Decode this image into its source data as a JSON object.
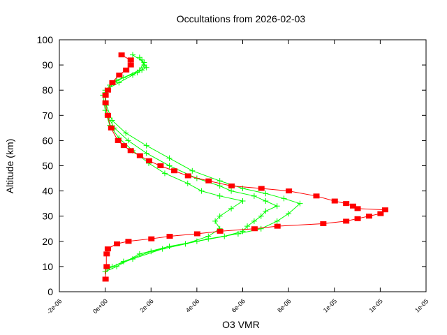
{
  "chart_data": {
    "type": "line",
    "title": "Occultations from 2026-02-03",
    "xlabel": "O3 VMR",
    "ylabel": "Altitude (km)",
    "xlim": [
      -2e-06,
      1.4e-05
    ],
    "ylim": [
      0,
      100
    ],
    "grid": false,
    "x_ticks": [
      -2e-06,
      0,
      2e-06,
      4e-06,
      6e-06,
      8e-06,
      1e-05,
      1.2e-05,
      1.4e-05
    ],
    "x_tick_labels": [
      "-2e-06",
      "0e+00",
      "2e-06",
      "4e-06",
      "6e-06",
      "8e-06",
      "1e-05",
      "1e-05",
      "1e-05"
    ],
    "y_ticks": [
      0,
      10,
      20,
      30,
      40,
      50,
      60,
      70,
      80,
      90,
      100
    ],
    "y_tick_labels": [
      "0",
      "10",
      "20",
      "30",
      "40",
      "50",
      "60",
      "70",
      "80",
      "90",
      "100"
    ],
    "series": [
      {
        "color": "#00ff00",
        "marker": "plus",
        "points": [
          [
            0.0,
            8
          ],
          [
            5e-07,
            10
          ],
          [
            1.5e-06,
            15
          ],
          [
            2.8e-06,
            18
          ],
          [
            4e-06,
            20
          ],
          [
            5.2e-06,
            22
          ],
          [
            6e-06,
            24
          ],
          [
            6.2e-06,
            26
          ],
          [
            6.5e-06,
            28
          ],
          [
            6.8e-06,
            30
          ],
          [
            7e-06,
            32
          ],
          [
            7.5e-06,
            34
          ],
          [
            7e-06,
            36
          ],
          [
            6.5e-06,
            38
          ],
          [
            5.5e-06,
            40
          ],
          [
            5e-06,
            42
          ],
          [
            4e-06,
            45
          ],
          [
            2.8e-06,
            50
          ],
          [
            1.8e-06,
            55
          ],
          [
            1e-06,
            60
          ],
          [
            4e-07,
            65
          ],
          [
            1e-07,
            70
          ],
          [
            0.0,
            75
          ],
          [
            0.0,
            80
          ],
          [
            6e-07,
            83
          ],
          [
            1.2e-06,
            86
          ],
          [
            1.6e-06,
            88
          ],
          [
            1.7e-06,
            90
          ],
          [
            1.5e-06,
            93
          ]
        ]
      },
      {
        "color": "#00ff00",
        "marker": "plus",
        "points": [
          [
            1e-07,
            9
          ],
          [
            8e-07,
            12
          ],
          [
            2e-06,
            16
          ],
          [
            3.5e-06,
            19
          ],
          [
            4.5e-06,
            22
          ],
          [
            5e-06,
            25
          ],
          [
            4.8e-06,
            28
          ],
          [
            5e-06,
            30
          ],
          [
            5.5e-06,
            33
          ],
          [
            6e-06,
            36
          ],
          [
            5e-06,
            38
          ],
          [
            4.2e-06,
            40
          ],
          [
            3.6e-06,
            43
          ],
          [
            2.6e-06,
            47
          ],
          [
            1.9e-06,
            51
          ],
          [
            1.2e-06,
            56
          ],
          [
            6e-07,
            61
          ],
          [
            2e-07,
            66
          ],
          [
            0.0,
            72
          ],
          [
            -1e-07,
            78
          ],
          [
            2e-07,
            82
          ],
          [
            8e-07,
            85
          ],
          [
            1.5e-06,
            88
          ],
          [
            1.7e-06,
            91
          ],
          [
            1.2e-06,
            94
          ]
        ]
      },
      {
        "color": "#00ff00",
        "marker": "plus",
        "points": [
          [
            3e-07,
            10
          ],
          [
            1.2e-06,
            13
          ],
          [
            2.5e-06,
            17
          ],
          [
            4.5e-06,
            21
          ],
          [
            5.8e-06,
            23
          ],
          [
            6.8e-06,
            25
          ],
          [
            7.5e-06,
            28
          ],
          [
            8e-06,
            31
          ],
          [
            8.5e-06,
            35
          ],
          [
            7.8e-06,
            37
          ],
          [
            7e-06,
            39
          ],
          [
            6e-06,
            41
          ],
          [
            5e-06,
            44
          ],
          [
            3.8e-06,
            48
          ],
          [
            2.8e-06,
            53
          ],
          [
            1.8e-06,
            58
          ],
          [
            9e-07,
            63
          ],
          [
            3e-07,
            68
          ],
          [
            5e-08,
            74
          ],
          [
            0.0,
            79
          ],
          [
            5e-07,
            84
          ],
          [
            1.4e-06,
            87
          ],
          [
            1.8e-06,
            89
          ],
          [
            1.6e-06,
            92
          ]
        ]
      },
      {
        "color": "#ff0000",
        "marker": "square",
        "points": [
          [
            0.0,
            5
          ],
          [
            5e-08,
            10
          ],
          [
            5e-08,
            15
          ],
          [
            1e-07,
            17
          ],
          [
            5e-07,
            19
          ],
          [
            1e-06,
            20
          ],
          [
            2e-06,
            21
          ],
          [
            2.8e-06,
            22
          ],
          [
            4e-06,
            23
          ],
          [
            5e-06,
            24
          ],
          [
            6.5e-06,
            25
          ],
          [
            7.5e-06,
            26
          ],
          [
            9.5e-06,
            27
          ],
          [
            1.05e-05,
            28
          ],
          [
            1.1e-05,
            29
          ],
          [
            1.15e-05,
            30
          ],
          [
            1.2e-05,
            31
          ],
          [
            1.22e-05,
            32.5
          ],
          [
            1.1e-05,
            33
          ],
          [
            1.08e-05,
            34
          ],
          [
            1.05e-05,
            35
          ],
          [
            1e-05,
            36
          ],
          [
            9.2e-06,
            38
          ],
          [
            8e-06,
            40
          ],
          [
            6.8e-06,
            41
          ],
          [
            5.5e-06,
            42
          ],
          [
            4.5e-06,
            44
          ],
          [
            3.6e-06,
            46
          ],
          [
            3e-06,
            48
          ],
          [
            2.4e-06,
            50
          ],
          [
            1.9e-06,
            52
          ],
          [
            1.5e-06,
            54
          ],
          [
            1.1e-06,
            56
          ],
          [
            8e-07,
            58
          ],
          [
            5.5e-07,
            60
          ],
          [
            2.5e-07,
            65
          ],
          [
            1e-07,
            70
          ],
          [
            0.0,
            75
          ],
          [
            0.0,
            78
          ],
          [
            1e-07,
            80
          ],
          [
            3e-07,
            83
          ],
          [
            6e-07,
            86
          ],
          [
            9e-07,
            88
          ],
          [
            1.1e-06,
            90
          ],
          [
            1.1e-06,
            92
          ],
          [
            7e-07,
            94
          ]
        ]
      }
    ]
  }
}
